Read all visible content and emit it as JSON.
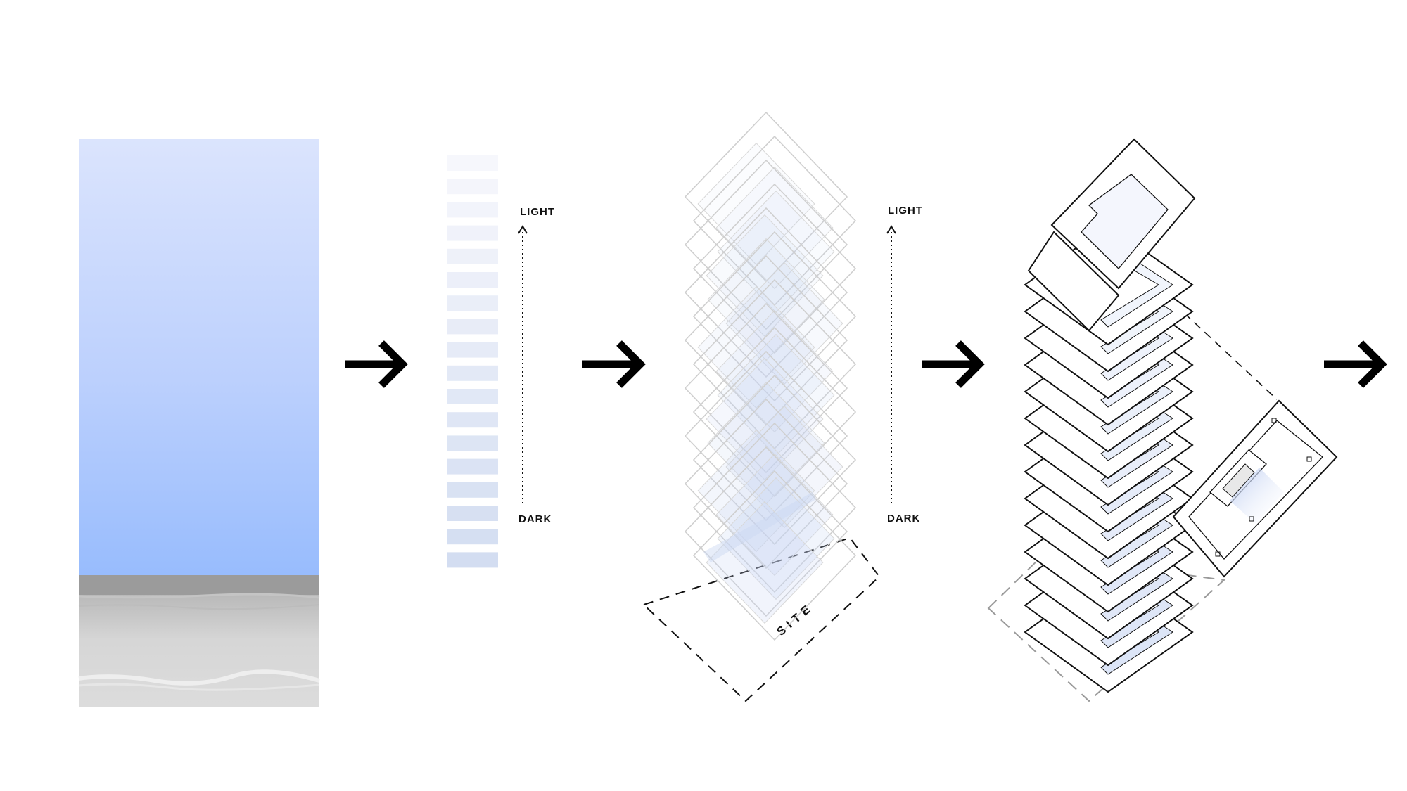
{
  "labels": {
    "light_1": "LIGHT",
    "dark_1": "DARK",
    "light_2": "LIGHT",
    "dark_2": "DARK",
    "site": "SITE"
  },
  "colors": {
    "sky_top": "#dbe4fd",
    "sky_bottom": "#98bcfd",
    "sea": "#9a9a9a",
    "sand": "#d9d9d9",
    "swatch_light": "#f6f7fc",
    "swatch_dark": "#d3ddf1",
    "floor_tint": "#c9d6f2",
    "line": "#111111",
    "grey_line": "#999999"
  },
  "gradient_scale": {
    "swatch_count": 18
  },
  "icons": [
    "arrow-right-icon",
    "arrow-right-icon",
    "arrow-right-icon",
    "arrow-right-icon",
    "dotted-arrow-up-icon",
    "dotted-arrow-up-icon"
  ]
}
